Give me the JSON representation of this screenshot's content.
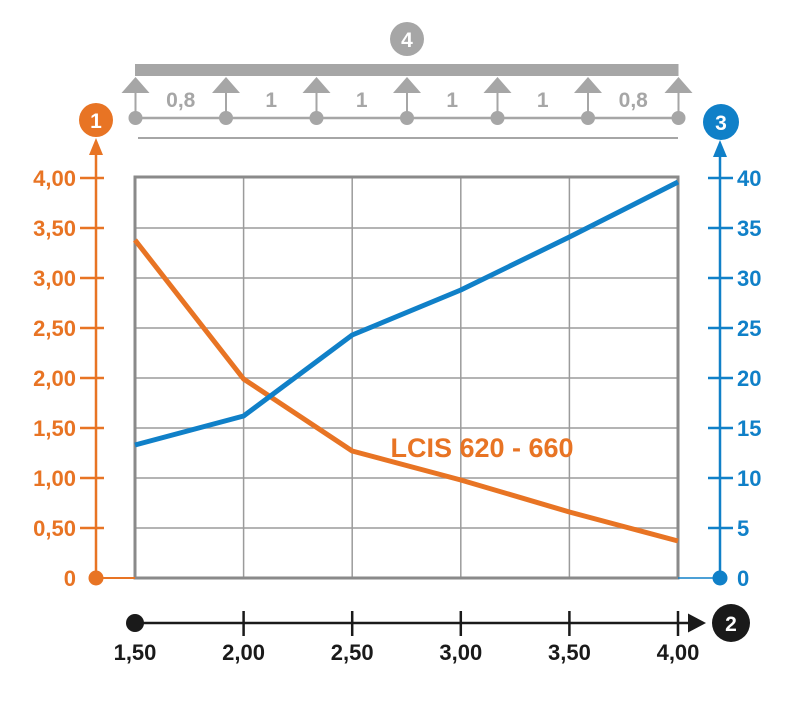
{
  "colors": {
    "orange": "#E87424",
    "blue": "#1080C8",
    "gray": "#A6A6A6",
    "grid": "#9B9B9B",
    "border": "#8A8A8A",
    "black": "#1A1A1A",
    "white": "#FFFFFF"
  },
  "badges": {
    "left_axis": "1",
    "bottom_axis": "2",
    "right_axis": "3",
    "beam": "4"
  },
  "beam_diagram": {
    "span_labels": [
      "0,8",
      "1",
      "1",
      "1",
      "1",
      "0,8"
    ],
    "support_count": 7
  },
  "chart_data": {
    "type": "line",
    "x": [
      1.5,
      2.0,
      2.5,
      3.0,
      3.5,
      4.0
    ],
    "x_tick_labels": [
      "1,50",
      "2,00",
      "2,50",
      "3,00",
      "3,50",
      "4,00"
    ],
    "xlim": [
      1.5,
      4.0
    ],
    "grid": true,
    "left_axis": {
      "min": 0,
      "max": 4,
      "color": "#E87424",
      "tick_values": [
        4,
        3.5,
        3,
        2.5,
        2,
        1.5,
        1,
        0.5,
        0
      ],
      "tick_labels": [
        "4,00",
        "3,50",
        "3,00",
        "2,50",
        "2,00",
        "1,50",
        "1,00",
        "0,50",
        "0"
      ]
    },
    "right_axis": {
      "min": 0,
      "max": 40,
      "color": "#1080C8",
      "tick_values": [
        40,
        35,
        30,
        25,
        20,
        15,
        10,
        5,
        0
      ],
      "tick_labels": [
        "40",
        "35",
        "30",
        "25",
        "20",
        "15",
        "10",
        "5",
        "0"
      ]
    },
    "series": [
      {
        "name": "LCIS 620 - 660",
        "axis": "left",
        "color": "#E87424",
        "values": [
          3.38,
          1.99,
          1.27,
          0.98,
          0.66,
          0.37
        ]
      },
      {
        "name": "",
        "axis": "right",
        "color": "#1080C8",
        "values": [
          13.3,
          16.2,
          24.3,
          28.8,
          34.1,
          39.6
        ]
      }
    ],
    "annotation": {
      "text": "LCIS 620 - 660",
      "color": "#E87424"
    }
  }
}
